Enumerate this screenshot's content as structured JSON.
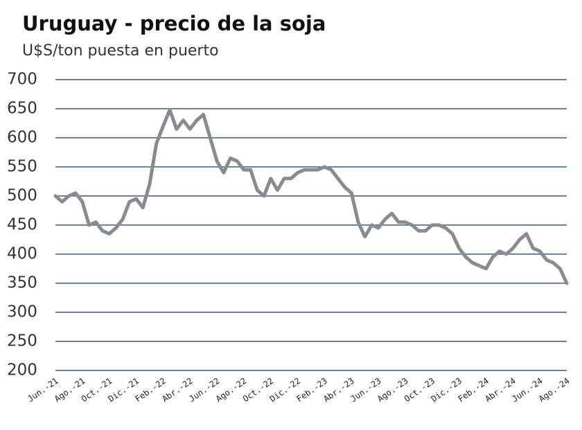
{
  "chart_data": {
    "type": "line",
    "title": "Uruguay - precio de la soja",
    "subtitle": "U$S/ton puesta en puerto",
    "categories": [
      "Jun.-21",
      null,
      null,
      null,
      "Ago.-21",
      null,
      null,
      null,
      "Oct.-21",
      null,
      null,
      null,
      "Dic.-21",
      null,
      null,
      null,
      "Feb.-22",
      null,
      null,
      null,
      "Abr.-22",
      null,
      null,
      null,
      "Jun.-22",
      null,
      null,
      null,
      "Ago.-22",
      null,
      null,
      null,
      "Oct.-22",
      null,
      null,
      null,
      "Dic.-22",
      null,
      null,
      null,
      "Feb.-23",
      null,
      null,
      null,
      "Abr.-23",
      null,
      null,
      null,
      "Jun.-23",
      null,
      null,
      null,
      "Ago.-23",
      null,
      null,
      null,
      "Oct.-23",
      null,
      null,
      null,
      "Dic.-23",
      null,
      null,
      null,
      "Feb.-24",
      null,
      null,
      null,
      "Abr.-24",
      null,
      null,
      null,
      "Jun.-24",
      null,
      null,
      null,
      "Ago.-24"
    ],
    "values": [
      500,
      490,
      500,
      505,
      490,
      450,
      455,
      440,
      435,
      445,
      460,
      490,
      495,
      480,
      520,
      590,
      620,
      648,
      615,
      630,
      615,
      630,
      640,
      600,
      560,
      540,
      565,
      560,
      545,
      545,
      510,
      500,
      530,
      510,
      530,
      530,
      540,
      545,
      545,
      545,
      550,
      545,
      530,
      515,
      505,
      455,
      430,
      450,
      445,
      460,
      470,
      455,
      455,
      450,
      440,
      440,
      450,
      450,
      445,
      435,
      410,
      395,
      385,
      380,
      375,
      395,
      405,
      400,
      410,
      425,
      435,
      410,
      405,
      390,
      385,
      375,
      350
    ],
    "color": "#898c8f",
    "ylim": [
      200,
      700
    ],
    "yticks": [
      200,
      250,
      300,
      350,
      400,
      450,
      500,
      550,
      600,
      650,
      700
    ],
    "grid": true
  }
}
